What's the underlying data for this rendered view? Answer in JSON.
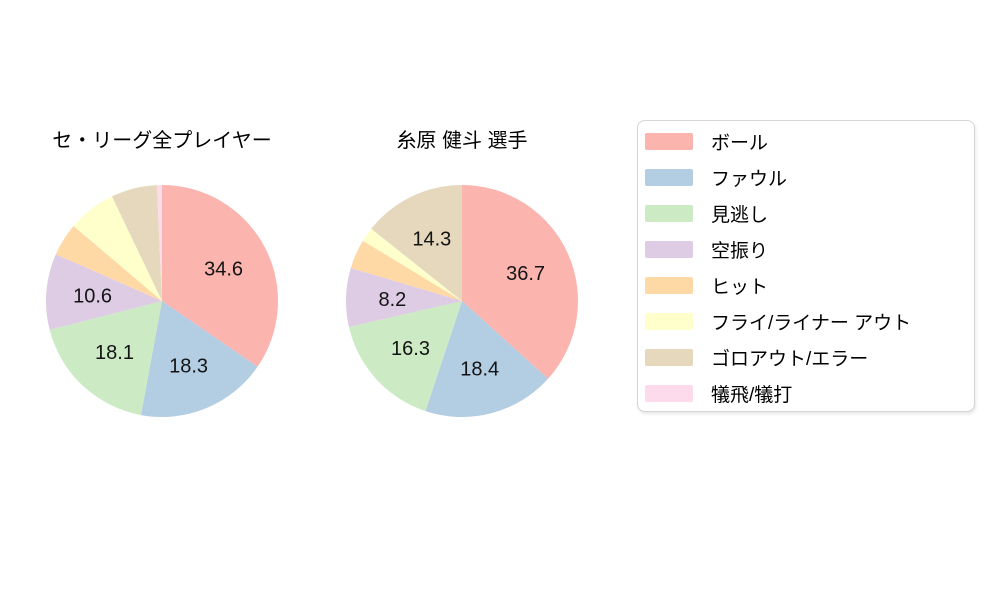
{
  "page": {
    "background_color": "#ffffff"
  },
  "chart_data": [
    {
      "type": "pie",
      "title": "セ・リーグ全プレイヤー",
      "unit": "percent",
      "start_angle": "top",
      "direction": "clockwise",
      "slices": [
        {
          "category": "ボール",
          "value": 34.6,
          "label": "34.6"
        },
        {
          "category": "ファウル",
          "value": 18.3,
          "label": "18.3"
        },
        {
          "category": "見逃し",
          "value": 18.1,
          "label": "18.1"
        },
        {
          "category": "空振り",
          "value": 10.6,
          "label": "10.6"
        },
        {
          "category": "ヒット",
          "value": 4.6,
          "label": ""
        },
        {
          "category": "フライ/ライナー アウト",
          "value": 6.7,
          "label": ""
        },
        {
          "category": "ゴロアウト/エラー",
          "value": 6.4,
          "label": ""
        },
        {
          "category": "犠飛/犠打",
          "value": 0.7,
          "label": ""
        }
      ]
    },
    {
      "type": "pie",
      "title": "糸原 健斗 選手",
      "unit": "percent",
      "start_angle": "top",
      "direction": "clockwise",
      "slices": [
        {
          "category": "ボール",
          "value": 36.7,
          "label": "36.7"
        },
        {
          "category": "ファウル",
          "value": 18.4,
          "label": "18.4"
        },
        {
          "category": "見逃し",
          "value": 16.3,
          "label": "16.3"
        },
        {
          "category": "空振り",
          "value": 8.2,
          "label": "8.2"
        },
        {
          "category": "ヒット",
          "value": 4.1,
          "label": ""
        },
        {
          "category": "フライ/ライナー アウト",
          "value": 2.0,
          "label": ""
        },
        {
          "category": "ゴロアウト/エラー",
          "value": 14.3,
          "label": "14.3"
        },
        {
          "category": "犠飛/犠打",
          "value": 0,
          "label": ""
        }
      ]
    }
  ],
  "legend": {
    "items": [
      {
        "label": "ボール",
        "color": "#fbb4ae"
      },
      {
        "label": "ファウル",
        "color": "#b3cde3"
      },
      {
        "label": "見逃し",
        "color": "#ccebc5"
      },
      {
        "label": "空振り",
        "color": "#decbe4"
      },
      {
        "label": "ヒット",
        "color": "#fed9a6"
      },
      {
        "label": "フライ/ライナー アウト",
        "color": "#ffffcc"
      },
      {
        "label": "ゴロアウト/エラー",
        "color": "#e5d8bd"
      },
      {
        "label": "犠飛/犠打",
        "color": "#fddaec"
      }
    ]
  }
}
